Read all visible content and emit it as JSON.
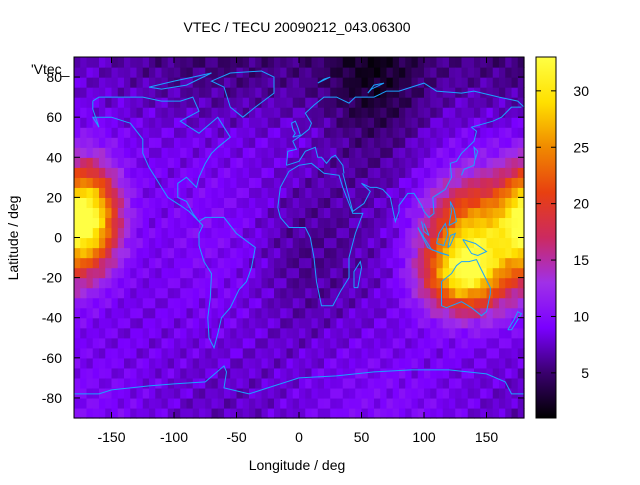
{
  "chart_data": {
    "type": "heatmap",
    "title": "VTEC / TECU 20090212_043.06300",
    "xlabel": "Longitude / deg",
    "ylabel": "Latitude / deg",
    "series_label": "'Vtec_",
    "xlim": [
      -180,
      180
    ],
    "ylim": [
      -90,
      90
    ],
    "x_ticks": [
      -150,
      -100,
      -50,
      0,
      50,
      100,
      150
    ],
    "y_ticks": [
      -80,
      -60,
      -40,
      -20,
      0,
      20,
      40,
      60,
      80
    ],
    "colorbar": {
      "range": [
        1,
        33
      ],
      "ticks": [
        5,
        10,
        15,
        20,
        25,
        30
      ],
      "palette": [
        "#000000",
        "#3a006e",
        "#7a00ff",
        "#a030e8",
        "#cc2a60",
        "#e84010",
        "#f08a00",
        "#ffe000",
        "#ffff44"
      ]
    },
    "background_level": 8.5,
    "hotspots": [
      {
        "lon": -170,
        "lat": 10,
        "peak_tecu": 33,
        "lon_sigma": 18,
        "lat_sigma": 18
      },
      {
        "lon": 140,
        "lat": 0,
        "peak_tecu": 27,
        "lon_sigma": 28,
        "lat_sigma": 20
      },
      {
        "lon": 130,
        "lat": -20,
        "peak_tecu": 22,
        "lon_sigma": 22,
        "lat_sigma": 12
      }
    ],
    "low_regions": [
      {
        "lon": 60,
        "lat": 80,
        "level_tecu": 3
      },
      {
        "lon": 0,
        "lat": -10,
        "level_tecu": 6
      }
    ],
    "overlay": "coastlines",
    "overlay_color": "#1aa3ff"
  }
}
